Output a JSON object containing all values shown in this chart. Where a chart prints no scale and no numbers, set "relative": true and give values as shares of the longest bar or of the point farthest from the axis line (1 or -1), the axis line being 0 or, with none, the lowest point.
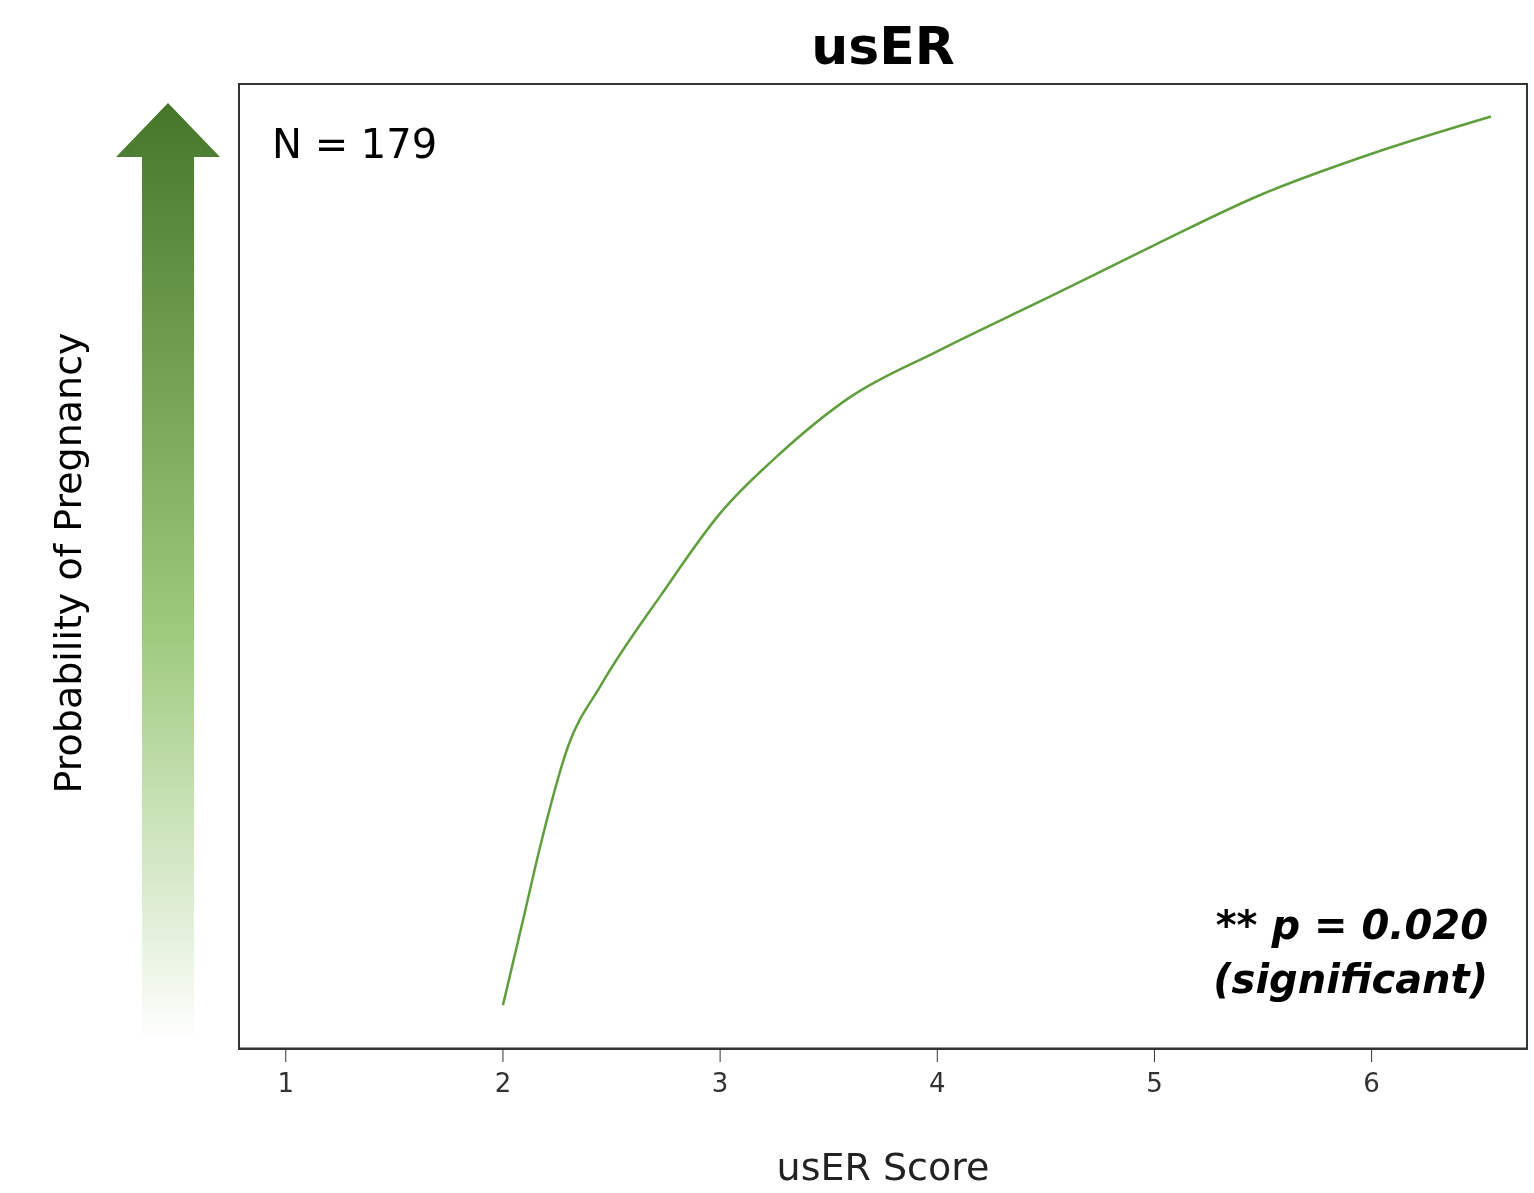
{
  "chart_data": {
    "type": "line",
    "title": "usER",
    "xlabel": "usER Score",
    "ylabel": "Probability of Pregnancy",
    "relative": true,
    "xlim": [
      0.78,
      6.72
    ],
    "xticks": [
      1,
      2,
      3,
      4,
      5,
      6
    ],
    "marker": "none",
    "line_style": "solid",
    "annotations": [
      "N = 179",
      "** p = 0.020 (significant)"
    ],
    "series": [
      {
        "color": "#5f9e3c",
        "x": [
          2.0,
          2.1,
          2.17,
          2.3,
          2.45,
          2.73,
          3.0,
          3.28,
          3.6,
          4.0,
          4.53,
          5.0,
          5.49,
          6.0,
          6.55
        ],
        "values": [
          0.046,
          0.145,
          0.215,
          0.324,
          0.389,
          0.487,
          0.574,
          0.639,
          0.699,
          0.748,
          0.808,
          0.862,
          0.916,
          0.96,
          1
        ]
      }
    ]
  }
}
